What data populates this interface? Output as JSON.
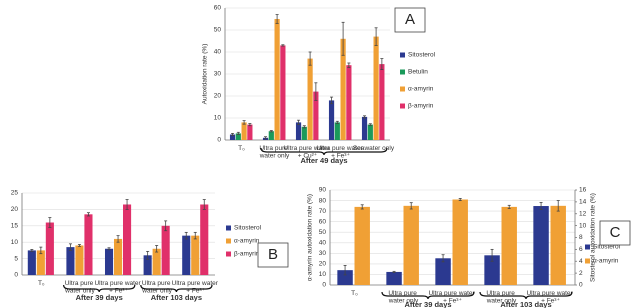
{
  "chart_data": [
    {
      "type": "bar",
      "label": "A",
      "ylabel": "Autoxidation rate (%)",
      "categories": [
        "T₀",
        "Ultra pure water only",
        "Ultra pure water + Cu²⁺",
        "Ultra pure water + Fe³⁺",
        "Seawater only"
      ],
      "groups": [
        "After 49 days"
      ],
      "series": [
        {
          "name": "Sitosterol",
          "color": "#2b3990",
          "values": [
            2.5,
            1,
            8,
            18,
            10.5
          ],
          "errors": [
            0.5,
            0.5,
            1,
            1.5,
            0.5
          ]
        },
        {
          "name": "Betulin",
          "color": "#1a9a5a",
          "values": [
            3,
            4,
            6,
            8,
            7
          ],
          "errors": [
            0.5,
            0.3,
            0.5,
            0.5,
            0.4
          ]
        },
        {
          "name": "α-amyrin",
          "color": "#f0a035",
          "values": [
            8,
            55,
            37,
            46,
            47
          ],
          "errors": [
            0.8,
            2,
            3,
            7.5,
            4
          ]
        },
        {
          "name": "β-amyrin",
          "color": "#e0306a",
          "values": [
            7,
            43,
            22,
            34,
            34.5
          ],
          "errors": [
            0.5,
            0.3,
            4,
            1,
            2.5
          ]
        }
      ],
      "ylim": [
        0,
        60
      ],
      "yticks": [
        0,
        10,
        20,
        30,
        40,
        50,
        60
      ],
      "grid": true,
      "legend": "right"
    },
    {
      "type": "bar",
      "label": "B",
      "categories": [
        "T₀",
        "Ultra pure water only",
        "Ultra pure water + Fe³⁺",
        "Ultra pure water only",
        "Ultra pure water + Fe³⁺"
      ],
      "groups": [
        "After 39 days",
        "After 103 days"
      ],
      "series": [
        {
          "name": "Sitosterol",
          "color": "#2b3990",
          "values": [
            7.5,
            8.5,
            8,
            6,
            12
          ],
          "errors": [
            0.3,
            1,
            0.3,
            1.2,
            1
          ]
        },
        {
          "name": "α-amyrin",
          "color": "#f0a035",
          "values": [
            7.5,
            9,
            11,
            8,
            12
          ],
          "errors": [
            1,
            0.3,
            1,
            1,
            1
          ]
        },
        {
          "name": "β-amyrin",
          "color": "#e0306a",
          "values": [
            16,
            18.5,
            21.5,
            15,
            21.5
          ],
          "errors": [
            1.5,
            0.5,
            1.5,
            1.5,
            1.5
          ]
        }
      ],
      "ylim": [
        0,
        25
      ],
      "yticks": [
        0,
        5,
        10,
        15,
        20,
        25
      ],
      "grid": true,
      "legend": "right"
    },
    {
      "type": "bar",
      "label": "C",
      "ylabel": "α-amyrin autoxidation rate (%)",
      "y2label": "Sitosterol autoxidation rate (%)",
      "categories": [
        "T₀",
        "Ultra pure water only",
        "Ultra pure water + Fe³⁺",
        "Ultra pure water only",
        "Ultra pure water + Fe³⁺"
      ],
      "groups": [
        "After 39 days",
        "After 103 days"
      ],
      "series": [
        {
          "name": "Sitosterol",
          "color": "#2b3990",
          "axis": "y2",
          "values": [
            2.5,
            2.2,
            4.5,
            5,
            13.3
          ],
          "errors": [
            0.8,
            0.1,
            0.6,
            1,
            0.6
          ]
        },
        {
          "name": "α-amyrin",
          "color": "#f0a035",
          "values": [
            74,
            75,
            81,
            74,
            75
          ],
          "errors": [
            2,
            3,
            1,
            1.5,
            5
          ]
        }
      ],
      "ylim": [
        0,
        90
      ],
      "yticks": [
        0,
        10,
        20,
        30,
        40,
        50,
        60,
        70,
        80,
        90
      ],
      "y2lim": [
        0,
        16
      ],
      "y2ticks": [
        0,
        2,
        4,
        6,
        8,
        10,
        12,
        14,
        16
      ],
      "grid": true,
      "legend": "right"
    }
  ]
}
